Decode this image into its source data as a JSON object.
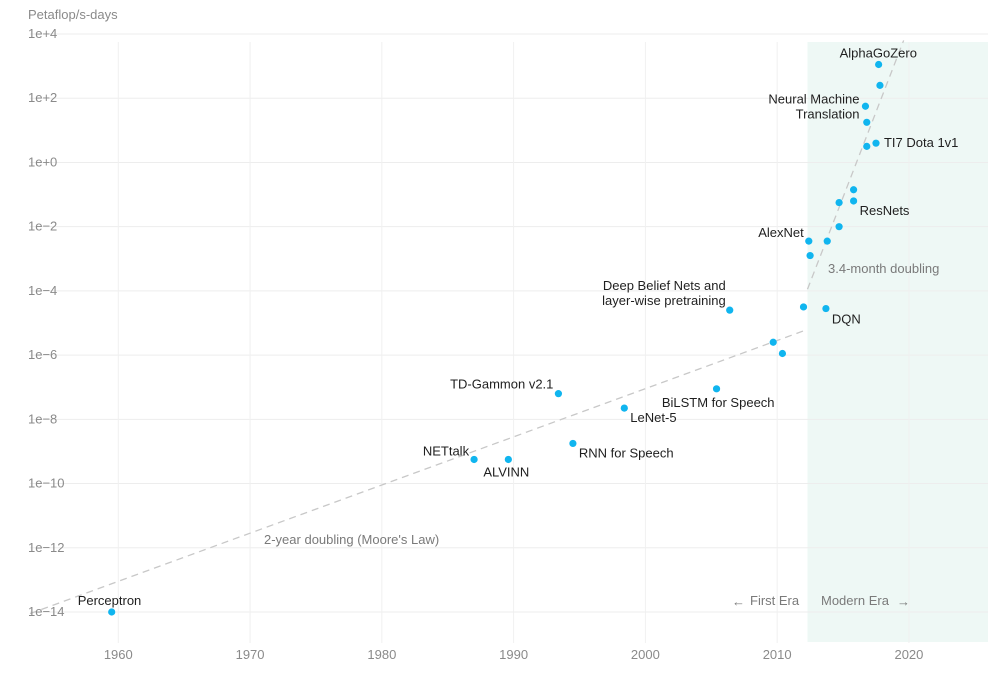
{
  "chart_data": {
    "type": "scatter",
    "title": "",
    "ylabel": "Petaflop/s-days",
    "xlabel": "",
    "yscale": "log",
    "xlim": [
      1953.3,
      2026.0
    ],
    "ylim_exp": [
      -15.0,
      4.0
    ],
    "x_ticks": [
      1960,
      1970,
      1980,
      1990,
      2000,
      2010,
      2020
    ],
    "y_ticks": [
      {
        "exp": 4,
        "label": "1e+4"
      },
      {
        "exp": 2,
        "label": "1e+2"
      },
      {
        "exp": 0,
        "label": "1e+0"
      },
      {
        "exp": -2,
        "label": "1e−2"
      },
      {
        "exp": -4,
        "label": "1e−4"
      },
      {
        "exp": -6,
        "label": "1e−6"
      },
      {
        "exp": -8,
        "label": "1e−8"
      },
      {
        "exp": -10,
        "label": "1e−10"
      },
      {
        "exp": -12,
        "label": "1e−12"
      },
      {
        "exp": -14,
        "label": "1e−14"
      }
    ],
    "grid": true,
    "point_color": "#10b5ef",
    "trend_color": "#c8c8c8",
    "modern_band_color": "#eef8f5",
    "modern_era_start": 2012.3,
    "points": [
      {
        "x": 1959.5,
        "y_exp": -14.0,
        "label": "Perceptron"
      },
      {
        "x": 1987.0,
        "y_exp": -9.25,
        "label": "NETtalk"
      },
      {
        "x": 1989.6,
        "y_exp": -9.25,
        "label": "ALVINN"
      },
      {
        "x": 1993.4,
        "y_exp": -7.2,
        "label": "TD-Gammon v2.1"
      },
      {
        "x": 1994.5,
        "y_exp": -8.75,
        "label": "RNN for Speech"
      },
      {
        "x": 1998.4,
        "y_exp": -7.65,
        "label": "LeNet-5"
      },
      {
        "x": 2005.4,
        "y_exp": -7.05,
        "label": "BiLSTM for Speech"
      },
      {
        "x": 2006.4,
        "y_exp": -4.6,
        "label": "Deep Belief Nets and layer-wise pretraining"
      },
      {
        "x": 2009.7,
        "y_exp": -5.6,
        "label": ""
      },
      {
        "x": 2010.4,
        "y_exp": -5.95,
        "label": ""
      },
      {
        "x": 2012.0,
        "y_exp": -4.5,
        "label": ""
      },
      {
        "x": 2013.7,
        "y_exp": -4.55,
        "label": "DQN"
      },
      {
        "x": 2012.4,
        "y_exp": -2.45,
        "label": "AlexNet"
      },
      {
        "x": 2012.5,
        "y_exp": -2.9,
        "label": ""
      },
      {
        "x": 2013.8,
        "y_exp": -2.45,
        "label": ""
      },
      {
        "x": 2014.7,
        "y_exp": -2.0,
        "label": ""
      },
      {
        "x": 2014.7,
        "y_exp": -1.25,
        "label": ""
      },
      {
        "x": 2015.8,
        "y_exp": -0.85,
        "label": ""
      },
      {
        "x": 2015.8,
        "y_exp": -1.2,
        "label": "ResNets"
      },
      {
        "x": 2016.8,
        "y_exp": 0.5,
        "label": ""
      },
      {
        "x": 2017.5,
        "y_exp": 0.6,
        "label": "TI7 Dota 1v1"
      },
      {
        "x": 2016.8,
        "y_exp": 1.25,
        "label": ""
      },
      {
        "x": 2016.7,
        "y_exp": 1.75,
        "label": "Neural Machine Translation"
      },
      {
        "x": 2017.8,
        "y_exp": 2.4,
        "label": ""
      },
      {
        "x": 2017.7,
        "y_exp": 3.05,
        "label": "AlphaGoZero"
      }
    ],
    "trend_lines": [
      {
        "name": "2-year doubling (Moore's Law)",
        "from": [
          1953.3,
          -14.05
        ],
        "to": [
          2012.3,
          -5.2
        ]
      },
      {
        "name": "3.4-month doubling",
        "from": [
          2012.3,
          -3.95
        ],
        "to": [
          2019.6,
          3.8
        ]
      }
    ],
    "era_labels": {
      "first": "First Era",
      "modern": "Modern Era"
    }
  }
}
